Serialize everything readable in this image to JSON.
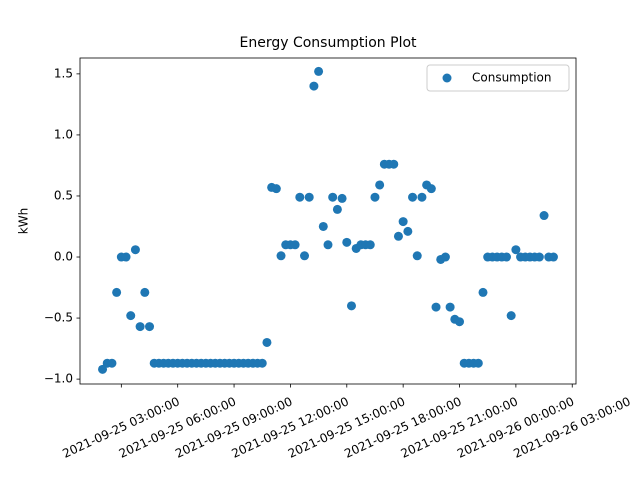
{
  "chart_data": {
    "type": "scatter",
    "title": "Energy Consumption Plot",
    "y_label": "kWh",
    "x": [
      "2021-09-25 02:00:00",
      "2021-09-25 02:15:00",
      "2021-09-25 02:30:00",
      "2021-09-25 02:45:00",
      "2021-09-25 03:00:00",
      "2021-09-25 03:15:00",
      "2021-09-25 03:30:00",
      "2021-09-25 03:45:00",
      "2021-09-25 04:00:00",
      "2021-09-25 04:15:00",
      "2021-09-25 04:30:00",
      "2021-09-25 04:45:00",
      "2021-09-25 05:00:00",
      "2021-09-25 05:15:00",
      "2021-09-25 05:30:00",
      "2021-09-25 05:45:00",
      "2021-09-25 06:00:00",
      "2021-09-25 06:15:00",
      "2021-09-25 06:30:00",
      "2021-09-25 06:45:00",
      "2021-09-25 07:00:00",
      "2021-09-25 07:15:00",
      "2021-09-25 07:30:00",
      "2021-09-25 07:45:00",
      "2021-09-25 08:00:00",
      "2021-09-25 08:15:00",
      "2021-09-25 08:30:00",
      "2021-09-25 08:45:00",
      "2021-09-25 09:00:00",
      "2021-09-25 09:15:00",
      "2021-09-25 09:30:00",
      "2021-09-25 09:45:00",
      "2021-09-25 10:00:00",
      "2021-09-25 10:15:00",
      "2021-09-25 10:30:00",
      "2021-09-25 10:45:00",
      "2021-09-25 11:00:00",
      "2021-09-25 11:15:00",
      "2021-09-25 11:30:00",
      "2021-09-25 11:45:00",
      "2021-09-25 12:00:00",
      "2021-09-25 12:15:00",
      "2021-09-25 12:30:00",
      "2021-09-25 12:45:00",
      "2021-09-25 13:00:00",
      "2021-09-25 13:15:00",
      "2021-09-25 13:30:00",
      "2021-09-25 13:45:00",
      "2021-09-25 14:00:00",
      "2021-09-25 14:15:00",
      "2021-09-25 14:30:00",
      "2021-09-25 14:45:00",
      "2021-09-25 15:00:00",
      "2021-09-25 15:15:00",
      "2021-09-25 15:30:00",
      "2021-09-25 15:45:00",
      "2021-09-25 16:00:00",
      "2021-09-25 16:15:00",
      "2021-09-25 16:30:00",
      "2021-09-25 16:45:00",
      "2021-09-25 17:00:00",
      "2021-09-25 17:15:00",
      "2021-09-25 17:30:00",
      "2021-09-25 17:45:00",
      "2021-09-25 18:00:00",
      "2021-09-25 18:15:00",
      "2021-09-25 18:30:00",
      "2021-09-25 18:45:00",
      "2021-09-25 19:00:00",
      "2021-09-25 19:15:00",
      "2021-09-25 19:30:00",
      "2021-09-25 19:45:00",
      "2021-09-25 20:00:00",
      "2021-09-25 20:15:00",
      "2021-09-25 20:30:00",
      "2021-09-25 20:45:00",
      "2021-09-25 21:00:00",
      "2021-09-25 21:15:00",
      "2021-09-25 21:30:00",
      "2021-09-25 21:45:00",
      "2021-09-25 22:00:00",
      "2021-09-25 22:15:00",
      "2021-09-25 22:30:00",
      "2021-09-25 22:45:00",
      "2021-09-25 23:00:00",
      "2021-09-25 23:15:00",
      "2021-09-25 23:30:00",
      "2021-09-25 23:45:00",
      "2021-09-26 00:00:00",
      "2021-09-26 00:15:00",
      "2021-09-26 00:30:00",
      "2021-09-26 00:45:00",
      "2021-09-26 01:00:00",
      "2021-09-26 01:15:00",
      "2021-09-26 01:30:00",
      "2021-09-26 01:45:00",
      "2021-09-26 02:00:00"
    ],
    "series": [
      {
        "name": "Consumption",
        "color": "#1f77b4",
        "values": [
          -0.92,
          -0.87,
          -0.87,
          -0.29,
          0,
          0,
          -0.48,
          0.06,
          -0.57,
          -0.29,
          -0.57,
          -0.87,
          -0.87,
          -0.87,
          -0.87,
          -0.87,
          -0.87,
          -0.87,
          -0.87,
          -0.87,
          -0.87,
          -0.87,
          -0.87,
          -0.87,
          -0.87,
          -0.87,
          -0.87,
          -0.87,
          -0.87,
          -0.87,
          -0.87,
          -0.87,
          -0.87,
          -0.87,
          -0.87,
          -0.7,
          0.57,
          0.56,
          0.01,
          0.1,
          0.1,
          0.1,
          0.49,
          0.01,
          0.49,
          1.4,
          1.52,
          0.25,
          0.1,
          0.49,
          0.39,
          0.48,
          0.12,
          -0.4,
          0.07,
          0.1,
          0.1,
          0.1,
          0.49,
          0.59,
          0.76,
          0.76,
          0.76,
          0.17,
          0.29,
          0.21,
          0.49,
          0.01,
          0.49,
          0.59,
          0.56,
          -0.41,
          -0.02,
          0,
          -0.41,
          -0.51,
          -0.53,
          -0.87,
          -0.87,
          -0.87,
          -0.87,
          -0.29,
          0,
          0,
          0,
          0,
          0,
          -0.48,
          0.06,
          0,
          0,
          0,
          0,
          0,
          0.34,
          0,
          0
        ]
      }
    ],
    "xlim": [
      "2021-09-25 00:48:00",
      "2021-09-26 03:12:00"
    ],
    "xticks": [
      "2021-09-25 03:00:00",
      "2021-09-25 06:00:00",
      "2021-09-25 09:00:00",
      "2021-09-25 12:00:00",
      "2021-09-25 15:00:00",
      "2021-09-25 18:00:00",
      "2021-09-25 21:00:00",
      "2021-09-26 00:00:00",
      "2021-09-26 03:00:00"
    ],
    "ylim": [
      -1.04,
      1.63
    ],
    "yticks": [
      {
        "value": -1,
        "label": "−1.0"
      },
      {
        "value": -0.5,
        "label": "−0.5"
      },
      {
        "value": 0,
        "label": "0.0"
      },
      {
        "value": 0.5,
        "label": "0.5"
      },
      {
        "value": 1,
        "label": "1.0"
      },
      {
        "value": 1.5,
        "label": "1.5"
      }
    ],
    "legend": "upper right",
    "grid": false
  }
}
